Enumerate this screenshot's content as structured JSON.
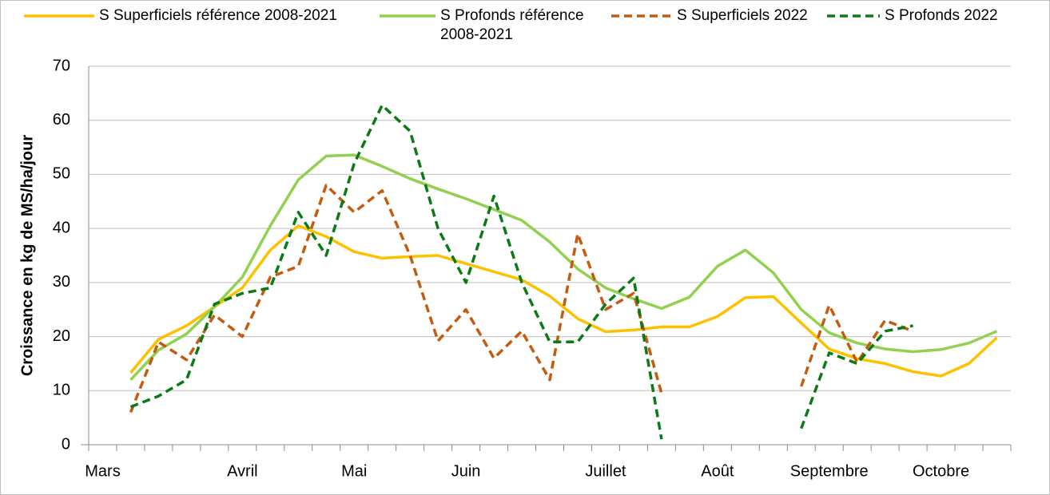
{
  "chart_data": {
    "type": "line",
    "y_label": "Croissance en kg de MS/ha/jour",
    "categories": [
      "Mars",
      null,
      null,
      null,
      null,
      "Avril",
      null,
      null,
      null,
      "Mai",
      null,
      null,
      null,
      "Juin",
      null,
      null,
      null,
      null,
      "Juillet",
      null,
      null,
      null,
      "Août",
      null,
      null,
      null,
      "Septembre",
      null,
      null,
      null,
      "Octobre",
      null,
      null
    ],
    "ylim": [
      0,
      70
    ],
    "yticks": [
      0,
      10,
      20,
      30,
      40,
      50,
      60,
      70
    ],
    "grid": true,
    "series": [
      {
        "name": "S Superficiels référence 2008-2021",
        "color": "#ffc000",
        "dash": false,
        "values": [
          null,
          13.3,
          19.5,
          22,
          25.5,
          29,
          36,
          40.5,
          38.5,
          35.7,
          34.5,
          34.8,
          35,
          33.5,
          32,
          30.5,
          27.5,
          23.3,
          20.9,
          21.2,
          21.8,
          21.8,
          23.7,
          27.2,
          27.4,
          22.5,
          17.7,
          15.9,
          15,
          13.5,
          12.7,
          15,
          19.8
        ]
      },
      {
        "name": "S Profonds référence 2008-2021",
        "color": "#92d050",
        "dash": false,
        "values": [
          null,
          12,
          17.5,
          20.5,
          25.5,
          31,
          40.5,
          49,
          53.4,
          53.6,
          51.5,
          49.2,
          47.3,
          45.5,
          43.5,
          41.5,
          37.5,
          32.5,
          29,
          27,
          25.2,
          27.3,
          33,
          36,
          31.8,
          25,
          20.7,
          18.8,
          17.7,
          17.2,
          17.6,
          18.8,
          21
        ]
      },
      {
        "name": "S Superficiels 2022",
        "color": "#c55a11",
        "dash": true,
        "values": [
          null,
          6,
          19,
          15.7,
          24,
          20,
          31,
          33,
          48,
          43,
          47,
          35,
          19.2,
          25,
          16,
          21,
          12,
          39,
          25,
          28,
          9.5,
          null,
          null,
          null,
          null,
          10.8,
          25.8,
          15.2,
          23,
          21,
          null,
          null,
          null
        ]
      },
      {
        "name": "S Profonds 2022",
        "color": "#0b7a14",
        "dash": true,
        "values": [
          null,
          7,
          9,
          12,
          26,
          28,
          29,
          43,
          35,
          52,
          62.8,
          58,
          40,
          30,
          46,
          30,
          19,
          19,
          26,
          30.8,
          1,
          null,
          null,
          null,
          null,
          3,
          17,
          15,
          21,
          22,
          null,
          null,
          null
        ]
      }
    ]
  }
}
